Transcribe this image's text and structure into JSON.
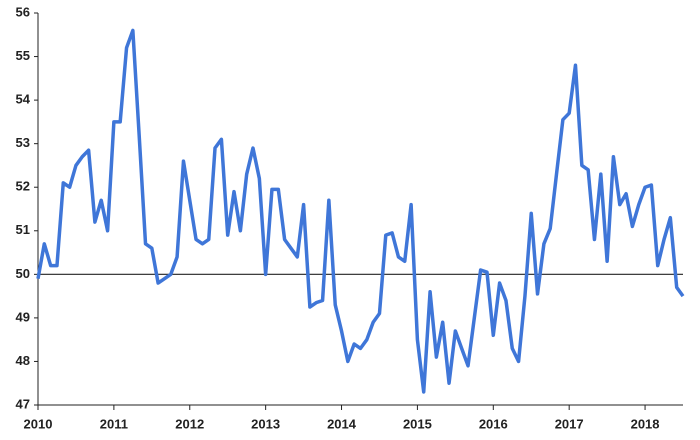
{
  "chart_data": {
    "type": "line",
    "x": [
      2010,
      2010.083,
      2010.167,
      2010.25,
      2010.333,
      2010.417,
      2010.5,
      2010.583,
      2010.667,
      2010.75,
      2010.833,
      2010.917,
      2011,
      2011.083,
      2011.167,
      2011.25,
      2011.333,
      2011.417,
      2011.5,
      2011.583,
      2011.667,
      2011.75,
      2011.833,
      2011.917,
      2012,
      2012.083,
      2012.167,
      2012.25,
      2012.333,
      2012.417,
      2012.5,
      2012.583,
      2012.667,
      2012.75,
      2012.833,
      2012.917,
      2013,
      2013.083,
      2013.167,
      2013.25,
      2013.333,
      2013.417,
      2013.5,
      2013.583,
      2013.667,
      2013.75,
      2013.833,
      2013.917,
      2014,
      2014.083,
      2014.167,
      2014.25,
      2014.333,
      2014.417,
      2014.5,
      2014.583,
      2014.667,
      2014.75,
      2014.833,
      2014.917,
      2015,
      2015.083,
      2015.167,
      2015.25,
      2015.333,
      2015.417,
      2015.5,
      2015.583,
      2015.667,
      2015.75,
      2015.833,
      2015.917,
      2016,
      2016.083,
      2016.167,
      2016.25,
      2016.333,
      2016.417,
      2016.5,
      2016.583,
      2016.667,
      2016.75,
      2016.833,
      2016.917,
      2017,
      2017.083,
      2017.167,
      2017.25,
      2017.333,
      2017.417,
      2017.5,
      2017.583,
      2017.667,
      2017.75,
      2017.833,
      2017.917,
      2018,
      2018.083,
      2018.167,
      2018.25,
      2018.333,
      2018.417,
      2018.5
    ],
    "series": [
      {
        "color": "#3f76d8",
        "values": [
          49.9,
          50.7,
          50.2,
          50.2,
          52.1,
          52.0,
          52.5,
          52.7,
          52.85,
          51.2,
          51.7,
          51.0,
          53.5,
          53.5,
          55.2,
          55.6,
          53.2,
          50.7,
          50.6,
          49.8,
          49.9,
          50.0,
          50.4,
          52.6,
          51.7,
          50.8,
          50.7,
          50.8,
          52.9,
          53.1,
          50.9,
          51.9,
          51.0,
          52.3,
          52.9,
          52.2,
          50.0,
          51.95,
          51.95,
          50.8,
          50.6,
          50.4,
          51.6,
          49.25,
          49.35,
          49.4,
          51.7,
          49.3,
          48.7,
          48.0,
          48.4,
          48.3,
          48.5,
          48.9,
          49.1,
          50.9,
          50.95,
          50.4,
          50.3,
          51.6,
          48.5,
          47.3,
          49.6,
          48.1,
          48.9,
          47.5,
          48.7,
          48.3,
          47.9,
          49.0,
          50.1,
          50.05,
          48.6,
          49.8,
          49.4,
          48.3,
          48.0,
          49.5,
          51.4,
          49.55,
          50.7,
          51.05,
          52.3,
          53.55,
          53.7,
          54.8,
          52.5,
          52.4,
          50.8,
          52.3,
          50.3,
          52.7,
          51.6,
          51.85,
          51.1,
          51.6,
          52.0,
          52.05,
          50.2,
          50.8,
          51.3,
          49.7,
          49.5
        ]
      }
    ],
    "xlim": [
      2010,
      2018.5
    ],
    "xticks": [
      2010,
      2011,
      2012,
      2013,
      2014,
      2015,
      2016,
      2017,
      2018
    ],
    "ylim": [
      47,
      56
    ],
    "yticks": [
      47,
      48,
      49,
      50,
      51,
      52,
      53,
      54,
      55,
      56
    ],
    "reference_line": 50
  }
}
